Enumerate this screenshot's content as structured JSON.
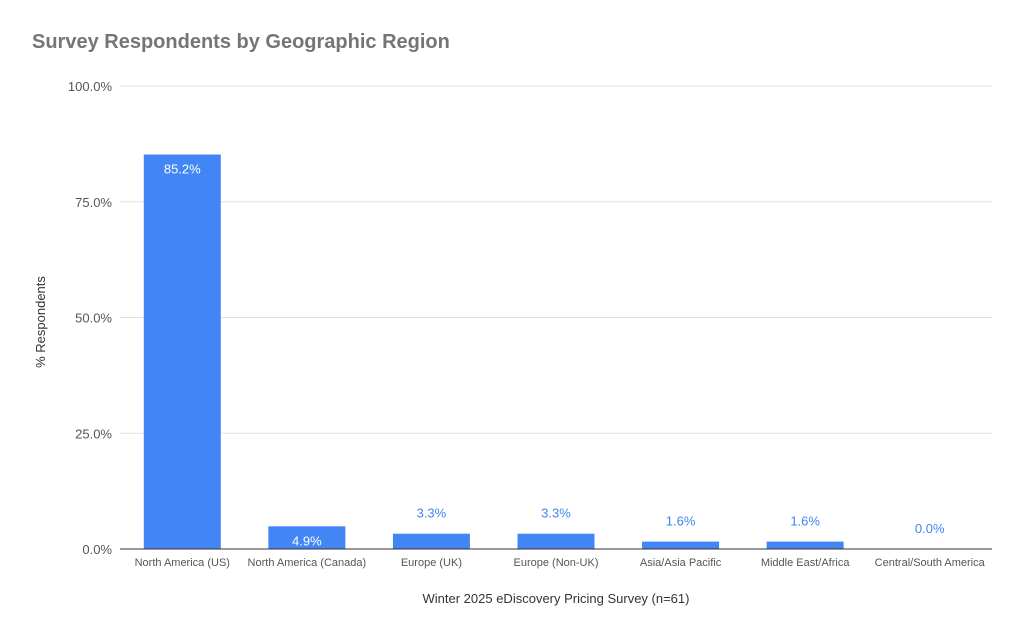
{
  "chart_data": {
    "type": "bar",
    "title": "Survey Respondents by Geographic Region",
    "xlabel": "Winter 2025 eDiscovery Pricing Survey (n=61)",
    "ylabel": "% Respondents",
    "ylim": [
      0,
      100
    ],
    "yticks": [
      "0.0%",
      "25.0%",
      "50.0%",
      "75.0%",
      "100.0%"
    ],
    "categories": [
      "North America (US)",
      "North America (Canada)",
      "Europe (UK)",
      "Europe (Non-UK)",
      "Asia/Asia Pacific",
      "Middle East/Africa",
      "Central/South America"
    ],
    "values": [
      85.2,
      4.9,
      3.3,
      3.3,
      1.6,
      1.6,
      0.0
    ],
    "data_labels": [
      "85.2%",
      "4.9%",
      "3.3%",
      "3.3%",
      "1.6%",
      "1.6%",
      "0.0%"
    ],
    "grid": true,
    "legend": "none",
    "colors": {
      "bar": "#4285f4",
      "grid": "#e0e0e0",
      "axis": "#333333",
      "label_inside": "#ffffff",
      "label_outside": "#4285f4"
    }
  }
}
